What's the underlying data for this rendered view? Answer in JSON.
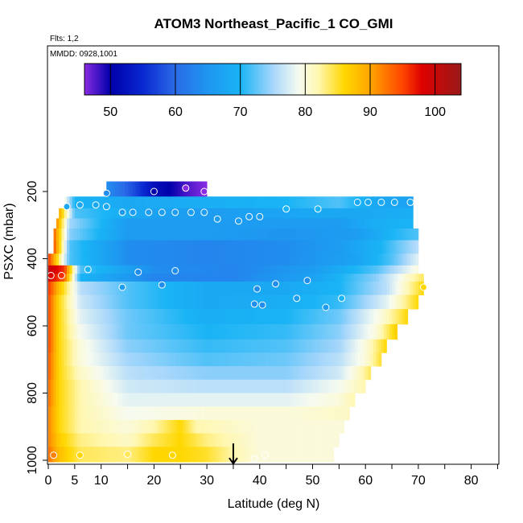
{
  "chart_data": {
    "type": "heatmap",
    "title": "ATOM3 Northeast_Pacific_1 CO_GMI",
    "notes": [
      "Flts: 1,2",
      "MMDD: 0928,1001"
    ],
    "xlabel": "Latitude (deg N)",
    "ylabel": "PSXC (mbar)",
    "xlim": [
      0,
      85
    ],
    "ylim": [
      1010,
      0
    ],
    "x_ticks": [
      0,
      5,
      10,
      20,
      30,
      40,
      50,
      60,
      70,
      80
    ],
    "y_ticks": [
      200,
      400,
      600,
      800,
      1000
    ],
    "colorbar": {
      "range": [
        46,
        104
      ],
      "ticks": [
        50,
        60,
        70,
        80,
        90,
        100
      ],
      "stops": [
        {
          "value": 46,
          "color": "#8a2be2"
        },
        {
          "value": 50,
          "color": "#0000aa"
        },
        {
          "value": 55,
          "color": "#0a28d0"
        },
        {
          "value": 60,
          "color": "#2b6be8"
        },
        {
          "value": 65,
          "color": "#1e96f0"
        },
        {
          "value": 70,
          "color": "#19b4f5"
        },
        {
          "value": 75,
          "color": "#a6d6fb"
        },
        {
          "value": 79,
          "color": "#f7fbf0"
        },
        {
          "value": 82,
          "color": "#fff7b0"
        },
        {
          "value": 86,
          "color": "#ffd700"
        },
        {
          "value": 90,
          "color": "#ffa500"
        },
        {
          "value": 95,
          "color": "#ff4500"
        },
        {
          "value": 98,
          "color": "#dd0000"
        },
        {
          "value": 104,
          "color": "#9a1a1a"
        }
      ]
    },
    "layers": [
      {
        "p": [
          170,
          215
        ],
        "lat": [
          11,
          30
        ],
        "values": [
          [
            11,
            64
          ],
          [
            16,
            58
          ],
          [
            20,
            52
          ],
          [
            23,
            50
          ],
          [
            26,
            48
          ],
          [
            30,
            46
          ]
        ]
      },
      {
        "p": [
          215,
          250
        ],
        "lat": [
          3,
          69
        ],
        "values": [
          [
            3,
            80
          ],
          [
            5,
            70
          ],
          [
            15,
            68
          ],
          [
            30,
            69
          ],
          [
            45,
            70
          ],
          [
            55,
            72
          ],
          [
            62,
            68
          ],
          [
            69,
            67
          ]
        ]
      },
      {
        "p": [
          250,
          280
        ],
        "lat": [
          2,
          69
        ],
        "values": [
          [
            2,
            90
          ],
          [
            5,
            72
          ],
          [
            20,
            67
          ],
          [
            30,
            66
          ],
          [
            40,
            67
          ],
          [
            50,
            68
          ],
          [
            60,
            68
          ],
          [
            69,
            69
          ]
        ]
      },
      {
        "p": [
          280,
          310
        ],
        "lat": [
          1.5,
          69
        ],
        "values": [
          [
            1.5,
            92
          ],
          [
            4,
            75
          ],
          [
            15,
            66
          ],
          [
            30,
            66
          ],
          [
            45,
            66
          ],
          [
            55,
            66
          ],
          [
            62,
            69
          ],
          [
            69,
            70
          ]
        ]
      },
      {
        "p": [
          310,
          345
        ],
        "lat": [
          1,
          70
        ],
        "values": [
          [
            1,
            94
          ],
          [
            4,
            74
          ],
          [
            15,
            66
          ],
          [
            30,
            66
          ],
          [
            45,
            65
          ],
          [
            58,
            66
          ],
          [
            65,
            70
          ],
          [
            70,
            72
          ]
        ]
      },
      {
        "p": [
          345,
          385
        ],
        "lat": [
          1,
          70
        ],
        "values": [
          [
            1,
            95
          ],
          [
            4,
            72
          ],
          [
            15,
            64
          ],
          [
            30,
            63
          ],
          [
            45,
            64
          ],
          [
            55,
            66
          ],
          [
            63,
            70
          ],
          [
            70,
            76
          ]
        ]
      },
      {
        "p": [
          385,
          420
        ],
        "lat": [
          0,
          70
        ],
        "values": [
          [
            0,
            96
          ],
          [
            4,
            72
          ],
          [
            15,
            64
          ],
          [
            30,
            63
          ],
          [
            45,
            64
          ],
          [
            58,
            67
          ],
          [
            65,
            72
          ],
          [
            70,
            78
          ]
        ]
      },
      {
        "p": [
          420,
          445
        ],
        "lat": [
          0,
          70
        ],
        "values": [
          [
            0,
            100
          ],
          [
            3,
            96
          ],
          [
            6,
            72
          ],
          [
            20,
            64
          ],
          [
            35,
            63
          ],
          [
            50,
            66
          ],
          [
            62,
            72
          ],
          [
            70,
            80
          ]
        ]
      },
      {
        "p": [
          445,
          468
        ],
        "lat": [
          0,
          71
        ],
        "values": [
          [
            0,
            99
          ],
          [
            3,
            94
          ],
          [
            6,
            70
          ],
          [
            20,
            63
          ],
          [
            35,
            63
          ],
          [
            50,
            67
          ],
          [
            62,
            74
          ],
          [
            71,
            84
          ]
        ]
      },
      {
        "p": [
          468,
          508
        ],
        "lat": [
          0,
          71
        ],
        "values": [
          [
            0,
            96
          ],
          [
            2,
            88
          ],
          [
            6,
            76
          ],
          [
            15,
            72
          ],
          [
            30,
            68
          ],
          [
            45,
            68
          ],
          [
            55,
            70
          ],
          [
            64,
            76
          ],
          [
            71,
            86
          ]
        ]
      },
      {
        "p": [
          508,
          550
        ],
        "lat": [
          0,
          70
        ],
        "values": [
          [
            0,
            95
          ],
          [
            2,
            86
          ],
          [
            6,
            77
          ],
          [
            15,
            72
          ],
          [
            30,
            68
          ],
          [
            45,
            69
          ],
          [
            55,
            71
          ],
          [
            64,
            78
          ],
          [
            70,
            86
          ]
        ]
      },
      {
        "p": [
          550,
          595
        ],
        "lat": [
          0,
          68
        ],
        "values": [
          [
            0,
            95
          ],
          [
            2,
            86
          ],
          [
            6,
            78
          ],
          [
            15,
            73
          ],
          [
            30,
            69
          ],
          [
            45,
            70
          ],
          [
            55,
            73
          ],
          [
            63,
            80
          ],
          [
            68,
            86
          ]
        ]
      },
      {
        "p": [
          595,
          640
        ],
        "lat": [
          0,
          66
        ],
        "values": [
          [
            0,
            95
          ],
          [
            2,
            86
          ],
          [
            6,
            79
          ],
          [
            15,
            73
          ],
          [
            30,
            70
          ],
          [
            45,
            71
          ],
          [
            55,
            74
          ],
          [
            62,
            80
          ],
          [
            66,
            87
          ]
        ]
      },
      {
        "p": [
          640,
          680
        ],
        "lat": [
          0,
          64
        ],
        "values": [
          [
            0,
            95
          ],
          [
            2,
            86
          ],
          [
            6,
            80
          ],
          [
            15,
            74
          ],
          [
            30,
            71
          ],
          [
            45,
            72
          ],
          [
            55,
            75
          ],
          [
            60,
            80
          ],
          [
            64,
            86
          ]
        ]
      },
      {
        "p": [
          680,
          720
        ],
        "lat": [
          0,
          63
        ],
        "values": [
          [
            0,
            94
          ],
          [
            2,
            86
          ],
          [
            6,
            80
          ],
          [
            15,
            75
          ],
          [
            30,
            72
          ],
          [
            45,
            73
          ],
          [
            55,
            76
          ],
          [
            60,
            80
          ],
          [
            63,
            85
          ]
        ]
      },
      {
        "p": [
          720,
          760
        ],
        "lat": [
          0,
          61
        ],
        "values": [
          [
            0,
            94
          ],
          [
            2,
            86
          ],
          [
            6,
            81
          ],
          [
            15,
            76
          ],
          [
            30,
            74
          ],
          [
            45,
            74
          ],
          [
            55,
            77
          ],
          [
            58,
            80
          ],
          [
            61,
            84
          ]
        ]
      },
      {
        "p": [
          760,
          800
        ],
        "lat": [
          0,
          60
        ],
        "values": [
          [
            0,
            93
          ],
          [
            2,
            86
          ],
          [
            6,
            82
          ],
          [
            15,
            77
          ],
          [
            30,
            76
          ],
          [
            45,
            76
          ],
          [
            55,
            79
          ],
          [
            60,
            82
          ]
        ]
      },
      {
        "p": [
          800,
          840
        ],
        "lat": [
          0,
          58
        ],
        "values": [
          [
            0,
            93
          ],
          [
            2,
            86
          ],
          [
            6,
            82
          ],
          [
            15,
            78
          ],
          [
            30,
            78
          ],
          [
            45,
            78
          ],
          [
            55,
            80
          ],
          [
            58,
            82
          ]
        ]
      },
      {
        "p": [
          840,
          880
        ],
        "lat": [
          0,
          57
        ],
        "values": [
          [
            0,
            92
          ],
          [
            2,
            86
          ],
          [
            6,
            82
          ],
          [
            15,
            79
          ],
          [
            30,
            80
          ],
          [
            45,
            80
          ],
          [
            57,
            81
          ]
        ]
      },
      {
        "p": [
          880,
          920
        ],
        "lat": [
          0,
          56
        ],
        "values": [
          [
            0,
            92
          ],
          [
            2,
            86
          ],
          [
            6,
            82
          ],
          [
            15,
            80
          ],
          [
            20,
            82
          ],
          [
            25,
            86
          ],
          [
            28,
            82
          ],
          [
            40,
            80
          ],
          [
            56,
            80
          ]
        ]
      },
      {
        "p": [
          920,
          960
        ],
        "lat": [
          0,
          55
        ],
        "values": [
          [
            0,
            92
          ],
          [
            2,
            87
          ],
          [
            6,
            83
          ],
          [
            15,
            81
          ],
          [
            20,
            84
          ],
          [
            25,
            86
          ],
          [
            30,
            83
          ],
          [
            40,
            80
          ],
          [
            55,
            80
          ]
        ]
      },
      {
        "p": [
          960,
          1005
        ],
        "lat": [
          0,
          54
        ],
        "values": [
          [
            0,
            93
          ],
          [
            2,
            88
          ],
          [
            6,
            84
          ],
          [
            15,
            83
          ],
          [
            20,
            86
          ],
          [
            25,
            86
          ],
          [
            30,
            85
          ],
          [
            35,
            82
          ],
          [
            40,
            80
          ],
          [
            54,
            80
          ]
        ]
      }
    ],
    "observations": [
      [
        11,
        205,
        64
      ],
      [
        20,
        200,
        50
      ],
      [
        26,
        190,
        46
      ],
      [
        29.5,
        200,
        46
      ],
      [
        3.5,
        245,
        68
      ],
      [
        6,
        240,
        68
      ],
      [
        9,
        240,
        68
      ],
      [
        11,
        245,
        68
      ],
      [
        14,
        262,
        66
      ],
      [
        16,
        262,
        66
      ],
      [
        19,
        262,
        66
      ],
      [
        21.5,
        262,
        66
      ],
      [
        24,
        262,
        66
      ],
      [
        27,
        262,
        66
      ],
      [
        29.5,
        262,
        66
      ],
      [
        32,
        282,
        66
      ],
      [
        36,
        288,
        66
      ],
      [
        38,
        275,
        66
      ],
      [
        40,
        275,
        66
      ],
      [
        45,
        252,
        70
      ],
      [
        51,
        252,
        70
      ],
      [
        58.5,
        232,
        68
      ],
      [
        60.5,
        232,
        68
      ],
      [
        63,
        232,
        68
      ],
      [
        65.5,
        232,
        68
      ],
      [
        68.5,
        232,
        68
      ],
      [
        7.5,
        432,
        70
      ],
      [
        17,
        440,
        64
      ],
      [
        24,
        436,
        64
      ],
      [
        21.5,
        478,
        64
      ],
      [
        14,
        485,
        66
      ],
      [
        39.5,
        490,
        64
      ],
      [
        43,
        475,
        64
      ],
      [
        49,
        465,
        64
      ],
      [
        40.5,
        538,
        64
      ],
      [
        39,
        535,
        64
      ],
      [
        47,
        518,
        66
      ],
      [
        52.5,
        545,
        66
      ],
      [
        55.5,
        518,
        70
      ],
      [
        71,
        485,
        86
      ],
      [
        0.5,
        450,
        98
      ],
      [
        2.5,
        450,
        96
      ],
      [
        1,
        985,
        92
      ],
      [
        6,
        985,
        86
      ],
      [
        15,
        982,
        84
      ],
      [
        23.5,
        985,
        86
      ],
      [
        39,
        995,
        80
      ],
      [
        41,
        985,
        80
      ]
    ],
    "arrow": {
      "lat": 35,
      "p": [
        950,
        1010
      ]
    }
  }
}
